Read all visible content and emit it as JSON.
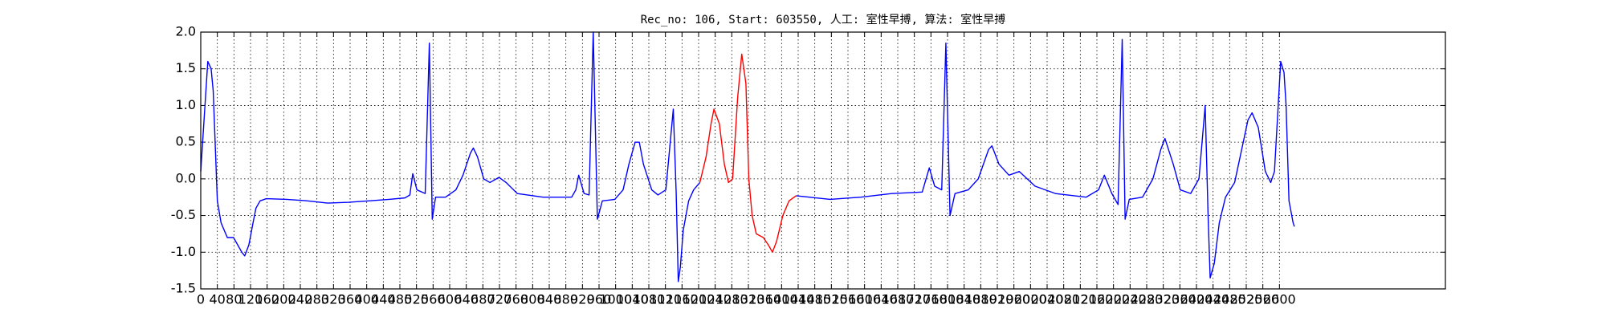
{
  "chart_data": {
    "type": "line",
    "title": "Rec_no: 106, Start: 603550, 人工: 室性早搏, 算法: 室性早搏",
    "xlim": [
      0,
      3000
    ],
    "xticks": [
      0,
      40,
      80,
      120,
      160,
      200,
      240,
      280,
      320,
      360,
      400,
      440,
      480,
      520,
      560,
      600,
      640,
      680,
      720,
      760,
      800,
      840,
      880,
      920,
      960,
      1000,
      1040,
      1080,
      1120,
      1160,
      1200,
      1240,
      1280,
      1320,
      1360,
      1400,
      1440,
      1480,
      1520,
      1560,
      1600,
      1640,
      1680,
      1720,
      1760,
      1800,
      1840,
      1880,
      1920,
      1960,
      2000,
      2040,
      2080,
      2120,
      2160,
      2200,
      2240,
      2280,
      2320,
      2360,
      2400,
      2440,
      2480,
      2520,
      2560,
      2600
    ],
    "ylim": [
      -1.5,
      2.0
    ],
    "yticks": [
      -1.5,
      {
        "value": -1.0,
        "label": "-1.0"
      },
      -0.5,
      {
        "value": 0.0,
        "label": "0.0"
      },
      0.5,
      {
        "value": 1.0,
        "label": "1.0"
      },
      1.5,
      {
        "value": 2.0,
        "label": "2.0"
      }
    ],
    "grid": true,
    "series": [
      {
        "color": "#0000ff",
        "x": [
          0,
          17,
          25,
          30,
          40,
          49,
          64,
          79,
          89,
          99,
          106,
          116,
          126,
          133,
          143,
          158,
          207,
          257,
          306,
          356,
          405,
          454,
          492,
          504,
          511,
          521,
          541,
          551,
          558,
          566,
          590,
          615,
          632,
          650,
          657,
          667,
          682,
          697,
          719,
          736,
          763,
          825,
          894,
          904,
          911,
          924,
          936,
          946,
          956,
          968,
          998,
          1018,
          1032,
          1047,
          1057,
          1067,
          1087,
          1102,
          1121,
          1139,
          1146,
          1151,
          1156,
          1163,
          1176,
          1188,
          1203,
          1300,
          1435,
          1467,
          1517,
          1591,
          1665,
          1739,
          1756,
          1769,
          1786,
          1796,
          1806,
          1818,
          1850,
          1874,
          1899,
          1907,
          1924,
          1948,
          1973,
          2011,
          2060,
          2134,
          2164,
          2178,
          2196,
          2211,
          2221,
          2228,
          2238,
          2270,
          2295,
          2314,
          2324,
          2344,
          2361,
          2386,
          2406,
          2421,
          2428,
          2433,
          2443,
          2455,
          2470,
          2492,
          2509,
          2524,
          2534,
          2549,
          2566,
          2579,
          2588,
          2603,
          2611,
          2616,
          2623,
          2633,
          2636
        ],
        "values": [
          0.1,
          1.6,
          1.5,
          1.2,
          -0.3,
          -0.6,
          -0.8,
          -0.8,
          -0.9,
          -1.0,
          -1.05,
          -0.9,
          -0.6,
          -0.4,
          -0.3,
          -0.27,
          -0.28,
          -0.3,
          -0.33,
          -0.32,
          -0.3,
          -0.28,
          -0.26,
          -0.22,
          0.07,
          -0.15,
          -0.2,
          1.85,
          -0.55,
          -0.25,
          -0.25,
          -0.15,
          0.05,
          0.35,
          0.42,
          0.3,
          0.0,
          -0.05,
          0.02,
          -0.05,
          -0.2,
          -0.25,
          -0.25,
          -0.15,
          0.05,
          -0.2,
          -0.22,
          2.0,
          -0.55,
          -0.3,
          -0.28,
          -0.15,
          0.2,
          0.5,
          0.5,
          0.2,
          -0.15,
          -0.22,
          -0.15,
          0.95,
          -0.2,
          -1.4,
          -1.2,
          -0.7,
          -0.3,
          -0.15,
          -0.05,
          null,
          -0.23,
          -0.25,
          -0.28,
          -0.25,
          -0.2,
          -0.18,
          0.15,
          -0.1,
          -0.15,
          1.85,
          -0.5,
          -0.2,
          -0.15,
          0.0,
          0.4,
          0.45,
          0.2,
          0.05,
          0.1,
          -0.1,
          -0.2,
          -0.25,
          -0.15,
          0.05,
          -0.2,
          -0.35,
          1.9,
          -0.55,
          -0.28,
          -0.25,
          0.0,
          0.4,
          0.55,
          0.2,
          -0.15,
          -0.2,
          0.0,
          1.0,
          -0.5,
          -1.35,
          -1.15,
          -0.6,
          -0.25,
          -0.05,
          0.4,
          0.8,
          0.9,
          0.7,
          0.1,
          -0.05,
          0.1,
          1.6,
          1.45,
          1.0,
          -0.3,
          -0.6,
          -0.65
        ]
      },
      {
        "color": "#ff0000",
        "x": [
          1203,
          1218,
          1230,
          1237,
          1250,
          1262,
          1272,
          1282,
          1294,
          1304,
          1314,
          1321,
          1329,
          1339,
          1356,
          1368,
          1378,
          1388,
          1403,
          1418,
          1435
        ],
        "values": [
          -0.05,
          0.3,
          0.75,
          0.95,
          0.75,
          0.2,
          -0.05,
          0.0,
          1.1,
          1.7,
          1.3,
          0.0,
          -0.5,
          -0.75,
          -0.8,
          -0.9,
          -1.0,
          -0.85,
          -0.5,
          -0.3,
          -0.23
        ]
      }
    ]
  }
}
